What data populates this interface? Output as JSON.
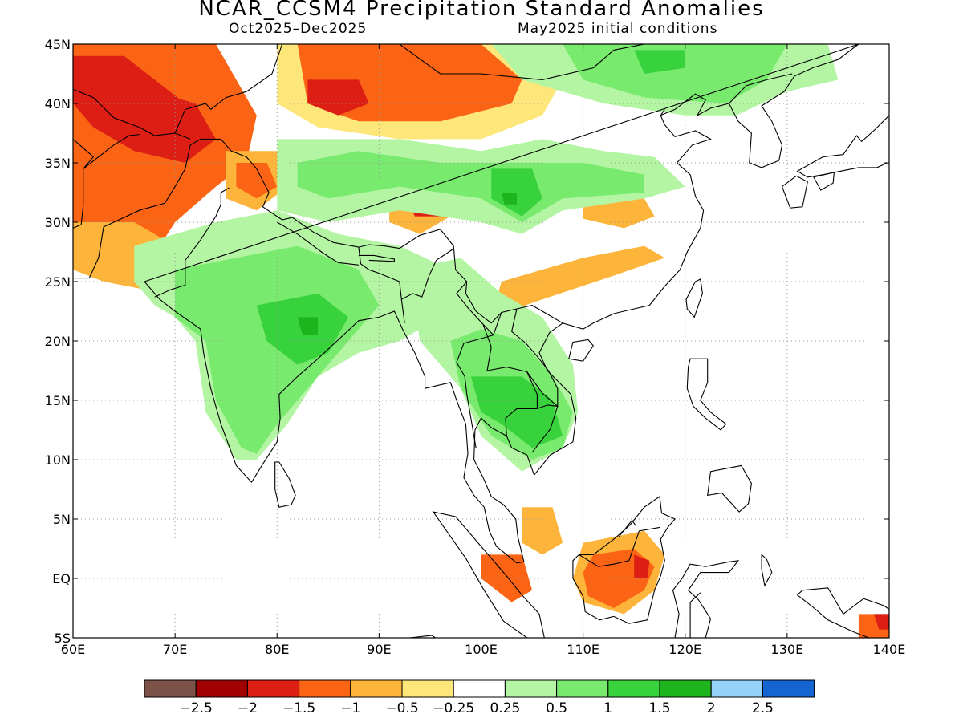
{
  "title": "NCAR_CCSM4 Precipitation Standard Anomalies",
  "period": "Oct2025–Dec2025",
  "init": "May2025 initial conditions",
  "map": {
    "lon_range": [
      60,
      140
    ],
    "lat_range": [
      -5,
      45
    ],
    "lon_ticks": [
      {
        "v": 60,
        "label": "60E"
      },
      {
        "v": 70,
        "label": "70E"
      },
      {
        "v": 80,
        "label": "80E"
      },
      {
        "v": 90,
        "label": "90E"
      },
      {
        "v": 100,
        "label": "100E"
      },
      {
        "v": 110,
        "label": "110E"
      },
      {
        "v": 120,
        "label": "120E"
      },
      {
        "v": 130,
        "label": "130E"
      },
      {
        "v": 140,
        "label": "140E"
      }
    ],
    "lat_ticks": [
      {
        "v": 45,
        "label": "45N"
      },
      {
        "v": 40,
        "label": "40N"
      },
      {
        "v": 35,
        "label": "35N"
      },
      {
        "v": 30,
        "label": "30N"
      },
      {
        "v": 25,
        "label": "25N"
      },
      {
        "v": 20,
        "label": "20N"
      },
      {
        "v": 15,
        "label": "15N"
      },
      {
        "v": 10,
        "label": "10N"
      },
      {
        "v": 5,
        "label": "5N"
      },
      {
        "v": 0,
        "label": "EQ"
      },
      {
        "v": -5,
        "label": "5S"
      }
    ]
  },
  "colorbar": {
    "colors": [
      "#7b5247",
      "#a00000",
      "#dc1e14",
      "#fa6414",
      "#fcb53a",
      "#fde67a",
      "#ffffff",
      "#b4f5a4",
      "#78ea6e",
      "#37d23c",
      "#1eb41e",
      "#96d2fa",
      "#1464d2"
    ],
    "labels": [
      "−2.5",
      "−2",
      "−1.5",
      "−1",
      "−0.5",
      "−0.25",
      "0.25",
      "0.5",
      "1",
      "1.5",
      "2",
      "2.5"
    ]
  },
  "chart_data": {
    "type": "heatmap",
    "title": "NCAR_CCSM4 Precipitation Standard Anomalies",
    "subtitle": "Oct2025–Dec2025  May2025 initial conditions",
    "x_range": [
      60,
      140
    ],
    "y_range": [
      -5,
      45
    ],
    "grid": true,
    "regions": [
      {
        "name": "",
        "value": -1.0,
        "poly": [
          [
            60,
            45
          ],
          [
            74,
            45
          ],
          [
            76,
            42
          ],
          [
            78,
            39
          ],
          [
            77,
            35
          ],
          [
            74,
            33
          ],
          [
            70,
            30
          ],
          [
            67,
            26
          ],
          [
            60,
            26
          ]
        ]
      },
      {
        "name": "",
        "value": -1.5,
        "poly": [
          [
            60,
            44
          ],
          [
            65,
            44
          ],
          [
            68,
            41
          ],
          [
            72,
            40
          ],
          [
            74,
            37
          ],
          [
            71,
            35
          ],
          [
            66,
            36
          ],
          [
            62,
            38
          ],
          [
            60,
            40
          ]
        ]
      },
      {
        "name": "",
        "value": -1.5,
        "poly": [
          [
            65,
            44
          ],
          [
            68,
            42
          ],
          [
            71,
            40
          ],
          [
            69,
            38
          ],
          [
            66,
            39
          ]
        ]
      },
      {
        "name": "",
        "value": -0.5,
        "poly": [
          [
            60,
            30
          ],
          [
            66,
            30
          ],
          [
            70,
            28
          ],
          [
            71,
            25
          ],
          [
            69,
            24
          ],
          [
            63,
            25
          ],
          [
            60,
            26
          ]
        ]
      },
      {
        "name": "",
        "value": -0.5,
        "poly": [
          [
            75,
            36
          ],
          [
            80,
            36
          ],
          [
            81,
            33
          ],
          [
            78,
            31
          ],
          [
            75,
            32
          ]
        ]
      },
      {
        "name": "",
        "value": -1.0,
        "poly": [
          [
            76,
            35
          ],
          [
            79,
            35
          ],
          [
            80,
            33
          ],
          [
            78,
            32
          ],
          [
            76,
            33
          ]
        ]
      },
      {
        "name": "",
        "value": -0.25,
        "poly": [
          [
            80,
            45
          ],
          [
            108,
            45
          ],
          [
            108,
            42
          ],
          [
            106,
            39
          ],
          [
            100,
            37
          ],
          [
            92,
            37
          ],
          [
            84,
            38
          ],
          [
            80,
            40
          ]
        ]
      },
      {
        "name": "",
        "value": -1.0,
        "poly": [
          [
            82,
            45
          ],
          [
            100,
            45
          ],
          [
            104,
            42
          ],
          [
            103,
            40
          ],
          [
            96,
            38.5
          ],
          [
            88,
            38.5
          ],
          [
            83,
            40
          ]
        ]
      },
      {
        "name": "",
        "value": -1.5,
        "poly": [
          [
            83,
            42
          ],
          [
            88,
            42
          ],
          [
            89,
            40
          ],
          [
            86,
            39
          ],
          [
            83,
            40
          ]
        ]
      },
      {
        "name": "",
        "value": -0.5,
        "poly": [
          [
            91,
            32
          ],
          [
            96,
            32
          ],
          [
            97,
            30.5
          ],
          [
            94,
            29
          ],
          [
            91,
            30
          ]
        ]
      },
      {
        "name": "",
        "value": -1.5,
        "poly": [
          [
            93,
            31.5
          ],
          [
            96,
            31.5
          ],
          [
            96,
            30.5
          ],
          [
            93.5,
            30.5
          ]
        ]
      },
      {
        "name": "",
        "value": -0.5,
        "poly": [
          [
            110,
            32
          ],
          [
            116,
            32
          ],
          [
            117,
            30.5
          ],
          [
            114,
            29.5
          ],
          [
            110,
            30.3
          ]
        ]
      },
      {
        "name": "",
        "value": -0.5,
        "poly": [
          [
            102,
            25
          ],
          [
            110,
            27
          ],
          [
            116,
            28
          ],
          [
            118,
            27
          ],
          [
            113,
            25.5
          ],
          [
            106,
            23.5
          ],
          [
            101,
            22
          ]
        ]
      },
      {
        "name": "",
        "value": 0.5,
        "poly": [
          [
            80,
            37
          ],
          [
            86,
            37
          ],
          [
            92,
            37
          ],
          [
            100,
            36
          ],
          [
            106,
            37
          ],
          [
            112,
            36
          ],
          [
            117,
            35.5
          ],
          [
            120,
            33
          ],
          [
            116,
            32
          ],
          [
            108,
            31
          ],
          [
            104,
            29
          ],
          [
            100,
            30
          ],
          [
            92,
            31
          ],
          [
            85,
            30
          ],
          [
            80,
            31
          ]
        ]
      },
      {
        "name": "",
        "value": 1.0,
        "poly": [
          [
            82,
            35
          ],
          [
            88,
            36
          ],
          [
            96,
            35
          ],
          [
            104,
            35
          ],
          [
            110,
            35
          ],
          [
            116,
            34
          ],
          [
            116,
            32.5
          ],
          [
            108,
            32
          ],
          [
            104,
            30
          ],
          [
            100,
            32
          ],
          [
            92,
            33
          ],
          [
            85,
            32
          ],
          [
            82,
            33
          ]
        ]
      },
      {
        "name": "",
        "value": 1.5,
        "poly": [
          [
            101,
            34.5
          ],
          [
            105,
            34.5
          ],
          [
            106,
            32
          ],
          [
            104,
            30.5
          ],
          [
            101,
            32
          ]
        ]
      },
      {
        "name": "",
        "value": 2.0,
        "poly": [
          [
            102,
            32.5
          ],
          [
            103.5,
            32.5
          ],
          [
            103.5,
            31.5
          ],
          [
            102.3,
            31.5
          ]
        ]
      },
      {
        "name": "",
        "value": 0.5,
        "poly": [
          [
            101,
            45
          ],
          [
            134,
            45
          ],
          [
            135,
            42
          ],
          [
            130,
            41
          ],
          [
            125,
            39
          ],
          [
            120,
            39
          ],
          [
            112,
            40
          ],
          [
            104,
            42
          ]
        ]
      },
      {
        "name": "",
        "value": 1.0,
        "poly": [
          [
            108,
            45
          ],
          [
            130,
            45
          ],
          [
            128,
            42
          ],
          [
            124,
            40
          ],
          [
            116,
            40.5
          ],
          [
            110,
            42
          ]
        ]
      },
      {
        "name": "",
        "value": 1.5,
        "poly": [
          [
            115,
            44.5
          ],
          [
            120,
            44.5
          ],
          [
            120,
            43
          ],
          [
            116,
            42.5
          ]
        ]
      },
      {
        "name": "",
        "value": 0.5,
        "poly": [
          [
            66,
            28
          ],
          [
            74,
            30
          ],
          [
            80,
            31
          ],
          [
            86,
            29
          ],
          [
            92,
            28
          ],
          [
            97,
            26
          ],
          [
            96,
            22
          ],
          [
            92,
            20
          ],
          [
            88,
            19
          ],
          [
            84,
            17
          ],
          [
            81,
            13
          ],
          [
            78,
            10
          ],
          [
            76,
            10
          ],
          [
            73,
            14
          ],
          [
            72,
            20
          ],
          [
            70,
            22
          ],
          [
            68,
            23
          ],
          [
            66,
            25
          ]
        ]
      },
      {
        "name": "",
        "value": 1.0,
        "poly": [
          [
            70,
            26
          ],
          [
            76,
            27
          ],
          [
            82,
            28
          ],
          [
            88,
            26
          ],
          [
            90,
            23
          ],
          [
            87,
            20
          ],
          [
            84,
            17
          ],
          [
            80,
            13
          ],
          [
            78,
            10.5
          ],
          [
            76.5,
            11
          ],
          [
            74,
            15
          ],
          [
            73,
            20
          ],
          [
            70,
            22
          ]
        ]
      },
      {
        "name": "",
        "value": 1.5,
        "poly": [
          [
            78,
            23
          ],
          [
            84,
            24
          ],
          [
            87,
            22
          ],
          [
            85,
            19
          ],
          [
            82,
            18
          ],
          [
            79,
            20
          ]
        ]
      },
      {
        "name": "",
        "value": 2.0,
        "poly": [
          [
            82,
            22
          ],
          [
            84,
            22
          ],
          [
            84,
            20.5
          ],
          [
            82.5,
            20.5
          ]
        ]
      },
      {
        "name": "",
        "value": 0.5,
        "poly": [
          [
            93,
            26
          ],
          [
            98,
            27
          ],
          [
            102,
            24
          ],
          [
            106,
            22
          ],
          [
            109,
            18
          ],
          [
            109.5,
            14
          ],
          [
            108,
            11
          ],
          [
            104,
            9
          ],
          [
            100,
            12
          ],
          [
            98,
            16
          ],
          [
            96,
            18
          ],
          [
            94,
            20
          ]
        ]
      },
      {
        "name": "",
        "value": 1.0,
        "poly": [
          [
            97,
            20
          ],
          [
            100,
            21
          ],
          [
            104,
            20
          ],
          [
            107,
            17
          ],
          [
            109,
            14
          ],
          [
            108,
            11
          ],
          [
            105,
            10
          ],
          [
            101,
            12
          ],
          [
            98,
            16
          ]
        ]
      },
      {
        "name": "",
        "value": 1.5,
        "poly": [
          [
            99,
            17
          ],
          [
            104,
            17
          ],
          [
            107,
            15
          ],
          [
            108,
            12
          ],
          [
            105,
            11
          ],
          [
            102,
            13
          ],
          [
            100,
            14
          ]
        ]
      },
      {
        "name": "",
        "value": -0.5,
        "poly": [
          [
            104,
            6
          ],
          [
            107,
            6
          ],
          [
            108,
            3
          ],
          [
            106,
            2
          ],
          [
            104,
            3
          ]
        ]
      },
      {
        "name": "",
        "value": -1.0,
        "poly": [
          [
            100,
            2
          ],
          [
            104,
            2
          ],
          [
            105,
            -1
          ],
          [
            103,
            -2
          ],
          [
            100,
            0
          ]
        ]
      },
      {
        "name": "",
        "value": -0.5,
        "poly": [
          [
            110,
            3
          ],
          [
            116,
            4
          ],
          [
            118,
            2
          ],
          [
            117,
            -1
          ],
          [
            114,
            -3
          ],
          [
            110,
            -2
          ],
          [
            109,
            0
          ]
        ]
      },
      {
        "name": "",
        "value": -1.0,
        "poly": [
          [
            111,
            2
          ],
          [
            115,
            2.5
          ],
          [
            117,
            1
          ],
          [
            116,
            -1
          ],
          [
            113,
            -2.5
          ],
          [
            110.5,
            -1.5
          ],
          [
            110,
            0.5
          ]
        ]
      },
      {
        "name": "",
        "value": -1.5,
        "poly": [
          [
            115,
            2
          ],
          [
            116.5,
            1.5
          ],
          [
            116.3,
            0
          ],
          [
            115,
            0
          ]
        ]
      },
      {
        "name": "",
        "value": -1.0,
        "poly": [
          [
            137,
            -3
          ],
          [
            140,
            -3
          ],
          [
            140,
            -5
          ],
          [
            137,
            -5
          ]
        ]
      },
      {
        "name": "",
        "value": -1.5,
        "poly": [
          [
            138.5,
            -3
          ],
          [
            140,
            -3
          ],
          [
            140,
            -4.3
          ],
          [
            139,
            -4.3
          ]
        ]
      }
    ]
  }
}
